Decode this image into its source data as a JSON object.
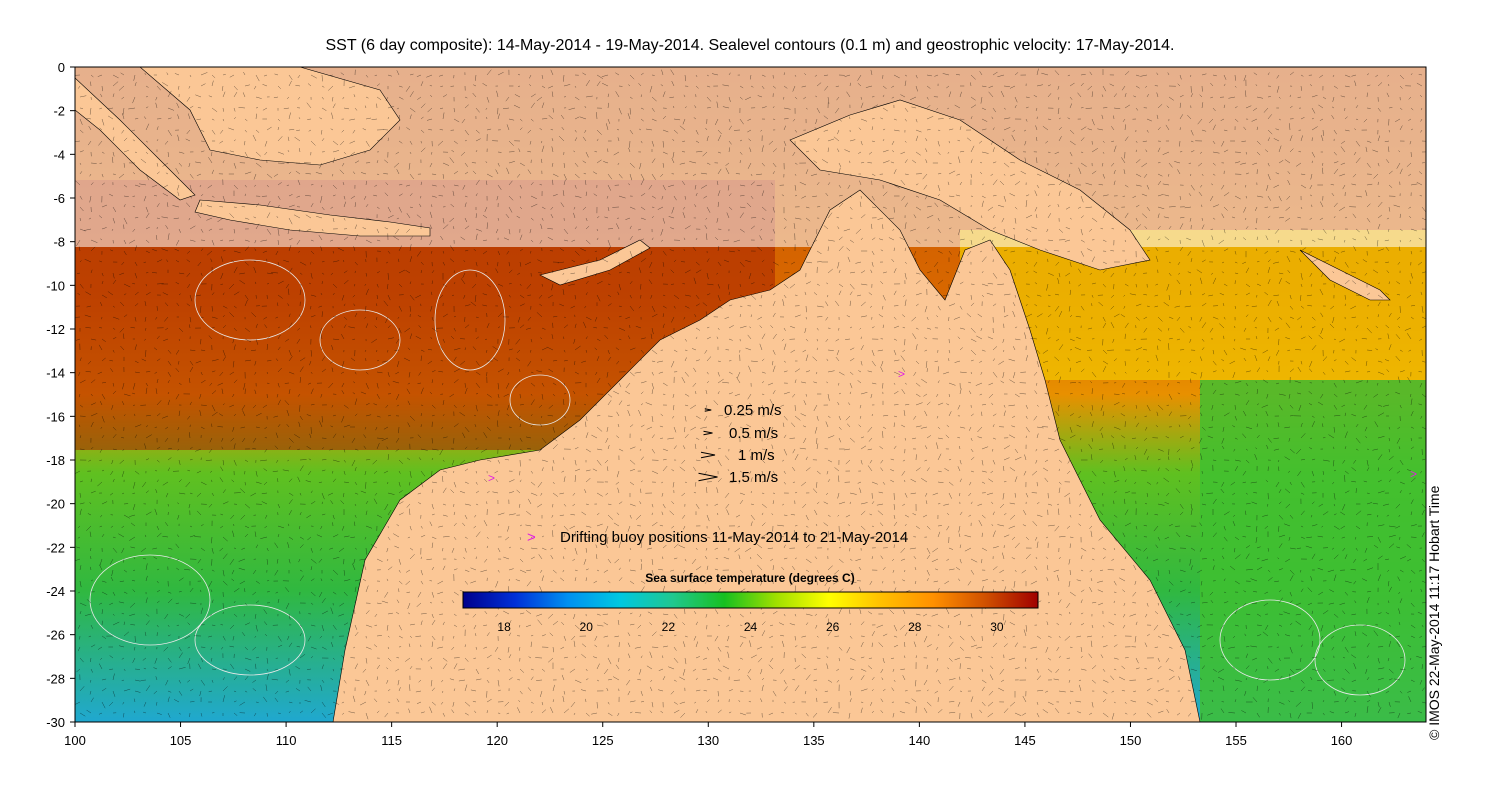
{
  "title": "SST (6 day composite): 14-May-2014 - 19-May-2014. Sealevel contours (0.1 m) and geostrophic velocity: 17-May-2014.",
  "credit": "© IMOS 22-May-2014 11:17 Hobart Time",
  "colors": {
    "land": "#fbc796",
    "coast": "#000000",
    "cloud": "#ffffff",
    "contour": "#e8e8e8",
    "buoy": "#e020e0"
  },
  "map": {
    "type": "sst_map",
    "lon_range": [
      100,
      164
    ],
    "lat_range": [
      -30,
      0
    ],
    "x_ticks": [
      100,
      105,
      110,
      115,
      120,
      125,
      130,
      135,
      140,
      145,
      150,
      155,
      160
    ],
    "y_ticks": [
      0,
      -2,
      -4,
      -6,
      -8,
      -10,
      -12,
      -14,
      -16,
      -18,
      -20,
      -22,
      -24,
      -26,
      -28,
      -30
    ],
    "region": "Maritime Continent and northern Australia"
  },
  "velocity_legend": [
    {
      "label": "0.25 m/s",
      "speed": 0.25
    },
    {
      "label": "0.5 m/s",
      "speed": 0.5
    },
    {
      "label": "1 m/s",
      "speed": 1
    },
    {
      "label": "1.5 m/s",
      "speed": 1.5
    }
  ],
  "buoy_legend": {
    "symbol": ">",
    "label": "Drifting buoy positions 11-May-2014 to 21-May-2014"
  },
  "colorbar": {
    "title": "Sea surface temperature (degrees C)",
    "min": 17,
    "max": 31,
    "ticks": [
      18,
      20,
      22,
      24,
      26,
      28,
      30
    ],
    "stops": [
      "#00008c",
      "#0030d8",
      "#0090f0",
      "#00c8e0",
      "#20c890",
      "#18c020",
      "#a0e000",
      "#ffff00",
      "#ffc000",
      "#ff9000",
      "#d05000",
      "#a00000"
    ]
  }
}
